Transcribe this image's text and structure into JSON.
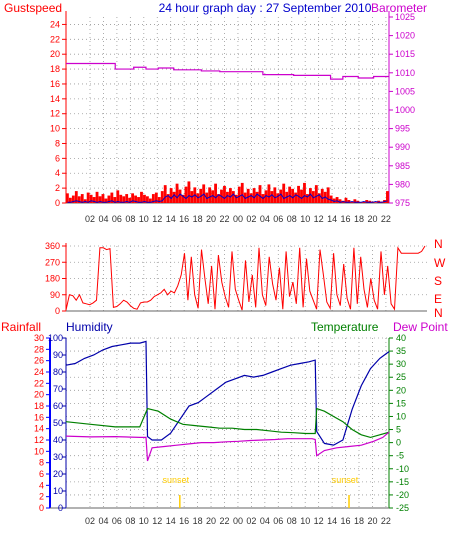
{
  "header": {
    "left_label": "Gustspeed",
    "title": "24 hour graph day : 27 September 2010",
    "right_label": "Barometer"
  },
  "colors": {
    "gust": "#ff0000",
    "wind": "#0000cc",
    "pressure": "#cc00cc",
    "humidity": "#0000aa",
    "temperature": "#008000",
    "dewpoint": "#cc00cc",
    "rain": "#0000ff",
    "sunset": "#ffcc00",
    "grid": "#999999",
    "axis": "#666666"
  },
  "chart_data": [
    {
      "type": "line",
      "name": "wind-and-pressure",
      "left_axis": {
        "label": "Gustspeed",
        "ylim": [
          0,
          25
        ],
        "ticks": [
          "0",
          "2",
          "4",
          "6",
          "8",
          "10",
          "12",
          "14",
          "16",
          "18",
          "20",
          "22",
          "24"
        ]
      },
      "right_axis": {
        "label": "Barometer",
        "ylim": [
          975,
          1025
        ],
        "ticks": [
          "975",
          "980",
          "985",
          "990",
          "995",
          "1000",
          "1005",
          "1010",
          "1015",
          "1020",
          "1025"
        ]
      },
      "x_ticks": [
        "02",
        "04",
        "06",
        "08",
        "10",
        "12",
        "14",
        "16",
        "18",
        "20",
        "22",
        "00",
        "02",
        "04",
        "06",
        "08",
        "10",
        "12",
        "14",
        "16",
        "18",
        "20",
        "22"
      ],
      "grid": "dotted",
      "series": [
        {
          "key": "gust",
          "type": "bar",
          "values": [
            1.3,
            0.7,
            1.0,
            1.6,
            0.9,
            1.2,
            0.5,
            1.4,
            1.1,
            0.8,
            1.5,
            0.9,
            1.2,
            0.6,
            1.0,
            1.4,
            0.8,
            1.7,
            1.1,
            0.9,
            1.2,
            0.7,
            1.3,
            1.0,
            0.8,
            1.5,
            1.1,
            0.9,
            0.6,
            1.2,
            1.4,
            0.8,
            1.6,
            2.4,
            1.2,
            2.0,
            1.5,
            2.6,
            1.8,
            1.1,
            2.2,
            2.9,
            1.6,
            2.1,
            1.3,
            1.9,
            2.5,
            1.4,
            2.1,
            1.7,
            2.6,
            1.2,
            1.8,
            2.3,
            1.5,
            2.0,
            1.6,
            1.1,
            2.2,
            2.7,
            1.4,
            1.9,
            1.3,
            2.0,
            1.5,
            2.4,
            1.2,
            1.7,
            2.5,
            1.6,
            2.1,
            1.3,
            1.8,
            2.6,
            1.5,
            2.2,
            1.9,
            1.4,
            2.3,
            1.8,
            2.7,
            1.2,
            2.0,
            1.6,
            2.4,
            1.3,
            1.9,
            1.5,
            2.1,
            1.0,
            0.6,
            0.8,
            0.5,
            0.3,
            0.7,
            0.4,
            0.2,
            0.5,
            0.3,
            0.1,
            0.2,
            0.4,
            0.3,
            0.2,
            0.1,
            0.3,
            0.2,
            0.4,
            1.6
          ]
        },
        {
          "key": "wind",
          "type": "line",
          "values": [
            0.1,
            0.1,
            0.2,
            0.3,
            0.2,
            0.1,
            0.2,
            0.1,
            0.3,
            0.2,
            0.1,
            0.2,
            0.1,
            0.1,
            0.2,
            0.3,
            0.1,
            0.2,
            0.1,
            0.1,
            0.2,
            0.1,
            0.3,
            0.2,
            0.1,
            0.1,
            0.2,
            0.1,
            0.1,
            0.2,
            0.3,
            0.2,
            0.3,
            0.8,
            1.0,
            0.6,
            1.1,
            0.7,
            1.2,
            0.9,
            0.6,
            1.0,
            0.8,
            1.1,
            0.7,
            0.9,
            1.2,
            0.6,
            0.8,
            1.0,
            0.7,
            1.1,
            0.9,
            0.6,
            1.0,
            0.8,
            1.2,
            0.7,
            0.9,
            1.1,
            0.6,
            0.8,
            1.0,
            0.7,
            1.2,
            0.9,
            0.6,
            1.0,
            0.8,
            1.1,
            0.7,
            0.9,
            1.2,
            0.6,
            0.8,
            1.0,
            0.7,
            1.1,
            0.9,
            0.6,
            1.0,
            0.8,
            1.2,
            0.7,
            0.9,
            1.1,
            0.6,
            0.8,
            0.5,
            0.4,
            0.2,
            0.3,
            0.1,
            0.2,
            0.1,
            0.1,
            0.2,
            0.1,
            0.1,
            0.1,
            0.2,
            0.1,
            0.1,
            0.1,
            0.2,
            0.1,
            0.1,
            0.2,
            0.3
          ]
        },
        {
          "key": "pressure",
          "type": "line",
          "axis": "right",
          "x": [
            0,
            15,
            16,
            20,
            22,
            24,
            26,
            30,
            35,
            38,
            40,
            44,
            50,
            58,
            64,
            68,
            74,
            80,
            86,
            90,
            95,
            100,
            102,
            105
          ],
          "values": [
            1012.5,
            1012.5,
            1011,
            1011,
            1011.5,
            1011.5,
            1011,
            1011.3,
            1010.8,
            1010.8,
            1010.8,
            1010.5,
            1010.3,
            1010.3,
            1009.5,
            1009.5,
            1009.3,
            1009.3,
            1008.3,
            1009,
            1008.6,
            1009,
            1009,
            1009
          ]
        }
      ]
    },
    {
      "type": "scatter",
      "name": "wind-direction",
      "left_axis": {
        "ylim": [
          0,
          360
        ],
        "ticks": [
          "0",
          "90",
          "180",
          "270",
          "360"
        ]
      },
      "right_labels": [
        "N",
        "W",
        "S",
        "E",
        "N"
      ],
      "values": [
        5,
        90,
        85,
        60,
        90,
        45,
        40,
        35,
        45,
        60,
        350,
        350,
        340,
        345,
        20,
        25,
        40,
        60,
        50,
        30,
        15,
        10,
        45,
        50,
        50,
        60,
        80,
        90,
        100,
        120,
        90,
        110,
        100,
        140,
        200,
        320,
        60,
        300,
        90,
        15,
        340,
        180,
        40,
        250,
        10,
        310,
        160,
        80,
        20,
        330,
        120,
        60,
        5,
        280,
        50,
        200,
        20,
        350,
        90,
        30,
        300,
        150,
        60,
        240,
        10,
        330,
        80,
        160,
        40,
        350,
        20,
        290,
        110,
        60,
        10,
        340,
        200,
        50,
        15,
        320,
        90,
        30,
        260,
        70,
        10,
        350,
        40,
        300,
        120,
        20,
        180,
        60,
        10,
        330,
        90,
        250,
        40,
        10,
        350,
        320,
        320,
        320,
        320,
        320,
        320,
        330,
        360
      ]
    },
    {
      "type": "line",
      "name": "humidity-temperature-dewpoint",
      "axes": {
        "rainfall": {
          "label": "Rainfall",
          "ticks": [
            "0",
            "2",
            "4",
            "6",
            "8",
            "10",
            "12",
            "14",
            "16",
            "18",
            "20",
            "22",
            "24",
            "26",
            "28",
            "30"
          ]
        },
        "humidity": {
          "label": "Humidity",
          "ylim": [
            0,
            100
          ],
          "ticks": [
            "0",
            "10",
            "20",
            "30",
            "40",
            "50",
            "60",
            "70",
            "80",
            "90",
            "100"
          ]
        },
        "temperature": {
          "label": "Temperature"
        },
        "dewpoint": {
          "label": "Dew Point",
          "ylim": [
            -25,
            40
          ],
          "ticks": [
            "-25",
            "-20",
            "-15",
            "-10",
            "-5",
            "0",
            "5",
            "10",
            "15",
            "20",
            "25",
            "30",
            "35",
            "40"
          ]
        }
      },
      "x_ticks": [
        "02",
        "04",
        "06",
        "08",
        "10",
        "12",
        "14",
        "16",
        "18",
        "20",
        "22",
        "00",
        "02",
        "04",
        "06",
        "08",
        "10",
        "12",
        "14",
        "16",
        "18",
        "20",
        "22"
      ],
      "annotations": [
        {
          "text": "sunset",
          "x": 37
        },
        {
          "text": "sunset",
          "x": 92
        }
      ],
      "series": [
        {
          "key": "humidity",
          "x": [
            0,
            3,
            6,
            9,
            12,
            15,
            18,
            21,
            24,
            26,
            26.5,
            28,
            31,
            34,
            37,
            40,
            43,
            46,
            49,
            52,
            55,
            58,
            61,
            64,
            67,
            70,
            73,
            76,
            79,
            81,
            81.5,
            84,
            87,
            90,
            93,
            96,
            99,
            102,
            105
          ],
          "values": [
            84,
            85,
            88,
            90,
            93,
            95,
            96,
            97,
            97,
            98,
            42,
            40,
            40,
            44,
            52,
            60,
            62,
            66,
            70,
            74,
            76,
            78,
            77,
            78,
            80,
            82,
            84,
            85,
            86,
            87,
            45,
            38,
            37,
            40,
            58,
            72,
            82,
            88,
            92
          ]
        },
        {
          "key": "temperature",
          "x": [
            0,
            8,
            16,
            24,
            26.5,
            30,
            34,
            38,
            42,
            46,
            50,
            54,
            58,
            62,
            66,
            70,
            74,
            78,
            81,
            81.5,
            84,
            87,
            90,
            93,
            96,
            99,
            102,
            105
          ],
          "values": [
            8,
            7,
            6,
            6,
            13,
            12,
            9,
            7,
            6.5,
            6,
            5.5,
            5.5,
            5,
            5,
            4.5,
            4,
            3.8,
            3.5,
            3.5,
            13,
            12,
            10,
            8,
            5,
            3,
            2,
            3,
            4
          ]
        },
        {
          "key": "dewpoint",
          "x": [
            0,
            8,
            16,
            24,
            26,
            26.5,
            28,
            32,
            36,
            40,
            44,
            48,
            52,
            56,
            60,
            64,
            68,
            72,
            76,
            80,
            81,
            81.5,
            84,
            88,
            92,
            96,
            100,
            103,
            105
          ],
          "values": [
            2.5,
            2.2,
            2.3,
            2,
            2,
            -7,
            -2,
            -1.5,
            -1,
            -0.5,
            0,
            0,
            0.3,
            0.5,
            0.8,
            1,
            1.2,
            1.5,
            1.5,
            1.5,
            1.2,
            -5,
            -3,
            -2,
            -1.5,
            -1,
            0.5,
            2,
            4
          ]
        }
      ]
    }
  ]
}
